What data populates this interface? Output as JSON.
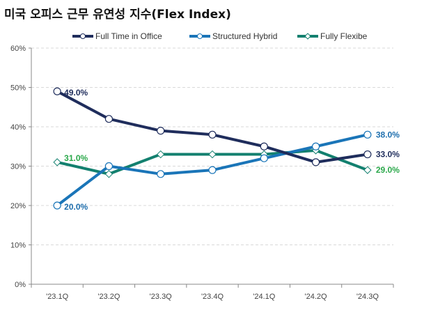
{
  "chart_data": {
    "type": "line",
    "title": "미국 오피스 근무 유연성 지수(Flex Index)",
    "categories": [
      "'23.1Q",
      "'23.2Q",
      "'23.3Q",
      "'23.4Q",
      "'24.1Q",
      "'24.2Q",
      "'24.3Q"
    ],
    "ylim": [
      0,
      60
    ],
    "yticks": [
      "0%",
      "10%",
      "20%",
      "30%",
      "40%",
      "50%",
      "60%"
    ],
    "grid": true,
    "legend_position": "top",
    "series": [
      {
        "name": "Full Time in Office",
        "color": "#1f2d5c",
        "marker": "circle",
        "values": [
          49,
          42,
          39,
          38,
          35,
          31,
          33
        ],
        "labels": {
          "0": "49.0%",
          "6": "33.0%"
        },
        "label_color": "#1f2d5c"
      },
      {
        "name": "Structured Hybrid",
        "color": "#1a75b8",
        "marker": "circle",
        "values": [
          20,
          30,
          28,
          29,
          32,
          35,
          38
        ],
        "labels": {
          "0": "20.0%",
          "6": "38.0%"
        },
        "label_color": "#1f6fae"
      },
      {
        "name": "Fully Flexibe",
        "color": "#13806f",
        "marker": "diamond",
        "values": [
          31,
          28,
          33,
          33,
          33,
          34,
          29
        ],
        "labels": {
          "0": "31.0%",
          "6": "29.0%"
        },
        "label_color": "#2aa84a"
      }
    ]
  }
}
